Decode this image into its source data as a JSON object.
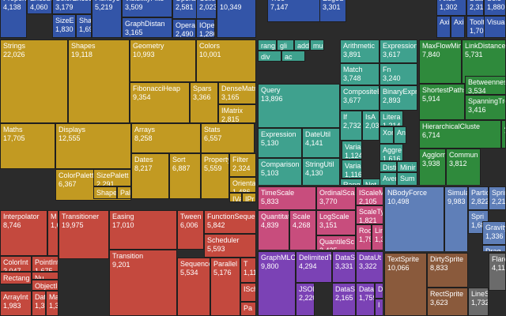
{
  "chart_data": {
    "type": "treemap",
    "colors": {
      "blue": "#3355a8",
      "gold": "#c29a22",
      "red": "#c4493e",
      "teal": "#3fa18e",
      "green": "#2f8a3c",
      "pink": "#c84d7d",
      "violet": "#7b42b5",
      "steel": "#5f7fb8",
      "brown": "#8a5a3c",
      "gray": "#6b6b6b"
    },
    "cells": [
      {
        "label": "Propert",
        "value": "4,138",
        "group": "blue"
      },
      {
        "label": "Encode",
        "value": "4,060",
        "group": "blue"
      },
      {
        "label": "ColorEncod",
        "value": "3,179",
        "group": "blue"
      },
      {
        "label": "SizeE",
        "value": "1,830",
        "group": "blue"
      },
      {
        "label": "Shap",
        "value": "1,690",
        "group": "blue"
      },
      {
        "label": "FisheyeTr",
        "value": "5,219",
        "group": "blue"
      },
      {
        "label": "VisibilityFilte",
        "value": "3,509",
        "group": "blue"
      },
      {
        "label": "GraphDistan",
        "value": "3,165",
        "group": "blue"
      },
      {
        "label": "Operator",
        "value": "2,581",
        "group": "blue"
      },
      {
        "label": "Operator",
        "value": "2,490",
        "group": "blue"
      },
      {
        "label": "IOper",
        "value": "1,286",
        "group": "blue"
      },
      {
        "label": "Collo",
        "value": "2,023",
        "group": "blue"
      },
      {
        "label": "",
        "value": "10,349",
        "group": "blue"
      },
      {
        "label": "Tree",
        "value": "7,147",
        "group": "blue"
      },
      {
        "label": "EdgeS",
        "value": "3,301",
        "group": "blue"
      },
      {
        "label": "Axes",
        "value": "1,302",
        "group": "blue"
      },
      {
        "label": "Axi",
        "value": "",
        "group": "blue"
      },
      {
        "label": "Axi",
        "value": "",
        "group": "blue"
      },
      {
        "label": "DataE",
        "value": "2,313",
        "group": "blue"
      },
      {
        "label": "Sele",
        "value": "1,880",
        "group": "blue"
      },
      {
        "label": "Tooltip",
        "value": "1,701",
        "group": "blue"
      },
      {
        "label": "Visualiz",
        "value": "",
        "group": "blue"
      },
      {
        "label": "Strings",
        "value": "22,026",
        "group": "gold"
      },
      {
        "label": "Shapes",
        "value": "19,118",
        "group": "gold"
      },
      {
        "label": "Geometry",
        "value": "10,993",
        "group": "gold"
      },
      {
        "label": "Colors",
        "value": "10,001",
        "group": "gold"
      },
      {
        "label": "FibonacciHeap",
        "value": "9,354",
        "group": "gold"
      },
      {
        "label": "Spars",
        "value": "3,366",
        "group": "gold"
      },
      {
        "label": "DenseMatrix",
        "value": "3,165",
        "group": "gold"
      },
      {
        "label": "IMatrix",
        "value": "2,815",
        "group": "gold"
      },
      {
        "label": "Maths",
        "value": "17,705",
        "group": "gold"
      },
      {
        "label": "Displays",
        "value": "12,555",
        "group": "gold"
      },
      {
        "label": "Arrays",
        "value": "8,258",
        "group": "gold"
      },
      {
        "label": "Stats",
        "value": "6,557",
        "group": "gold"
      },
      {
        "label": "Dates",
        "value": "8,217",
        "group": "gold"
      },
      {
        "label": "Sort",
        "value": "6,887",
        "group": "gold"
      },
      {
        "label": "Property",
        "value": "5,559",
        "group": "gold"
      },
      {
        "label": "Filter",
        "value": "2,324",
        "group": "gold"
      },
      {
        "label": "ColorPalette",
        "value": "6,367",
        "group": "gold"
      },
      {
        "label": "SizePalett",
        "value": "2,291",
        "group": "gold"
      },
      {
        "label": "Shape",
        "value": "2,059",
        "group": "gold"
      },
      {
        "label": "Pal",
        "value": "1,229",
        "group": "gold"
      },
      {
        "label": "Orienta",
        "value": "1,486",
        "group": "gold"
      },
      {
        "label": "IVal",
        "value": "",
        "group": "gold"
      },
      {
        "label": "IPr",
        "value": "",
        "group": "gold"
      },
      {
        "label": "Interpolator",
        "value": "8,746",
        "group": "red"
      },
      {
        "label": "M",
        "value": "1,675",
        "group": "red"
      },
      {
        "label": "Transitioner",
        "value": "19,975",
        "group": "red"
      },
      {
        "label": "Easing",
        "value": "17,010",
        "group": "red"
      },
      {
        "label": "Tween",
        "value": "6,006",
        "group": "red"
      },
      {
        "label": "FunctionSeque",
        "value": "5,842",
        "group": "red"
      },
      {
        "label": "Scheduler",
        "value": "5,593",
        "group": "red"
      },
      {
        "label": "ColorInt",
        "value": "2,047",
        "group": "red"
      },
      {
        "label": "PointInt",
        "value": "1,675",
        "group": "red"
      },
      {
        "label": "Rectang",
        "value": "2,042",
        "group": "red"
      },
      {
        "label": "Nu",
        "value": "1,382",
        "group": "red"
      },
      {
        "label": "ObjectIn",
        "value": "1,629",
        "group": "red"
      },
      {
        "label": "ArrayInt",
        "value": "1,983",
        "group": "red"
      },
      {
        "label": "Dat",
        "value": "1,375",
        "group": "red"
      },
      {
        "label": "Mat",
        "value": "1,375",
        "group": "red"
      },
      {
        "label": "Transition",
        "value": "9,201",
        "group": "red"
      },
      {
        "label": "Sequence",
        "value": "5,534",
        "group": "red"
      },
      {
        "label": "Parallel",
        "value": "5,176",
        "group": "red"
      },
      {
        "label": "T",
        "value": "1,11",
        "group": "red"
      },
      {
        "label": "ISch",
        "value": "",
        "group": "red"
      },
      {
        "label": "Pa",
        "value": "",
        "group": "red"
      },
      {
        "label": "rang",
        "value": "",
        "group": "teal"
      },
      {
        "label": "gli",
        "value": "",
        "group": "teal"
      },
      {
        "label": "add",
        "value": "",
        "group": "teal"
      },
      {
        "label": "mu",
        "value": "",
        "group": "teal"
      },
      {
        "label": "div",
        "value": "",
        "group": "teal"
      },
      {
        "label": "ac",
        "value": "",
        "group": "teal"
      },
      {
        "label": "Arithmetic",
        "value": "3,891",
        "group": "teal"
      },
      {
        "label": "Expression",
        "value": "3,617",
        "group": "teal"
      },
      {
        "label": "Match",
        "value": "3,748",
        "group": "teal"
      },
      {
        "label": "Fn",
        "value": "3,240",
        "group": "teal"
      },
      {
        "label": "Query",
        "value": "13,896",
        "group": "teal"
      },
      {
        "label": "CompositeE",
        "value": "3,677",
        "group": "teal"
      },
      {
        "label": "BinaryExpr",
        "value": "2,893",
        "group": "teal"
      },
      {
        "label": "If",
        "value": "2,732",
        "group": "teal"
      },
      {
        "label": "IsA",
        "value": "2,039",
        "group": "teal"
      },
      {
        "label": "Litera",
        "value": "1,214",
        "group": "teal"
      },
      {
        "label": "Varia",
        "value": "1,124",
        "group": "teal"
      },
      {
        "label": "Xor",
        "value": "",
        "group": "teal"
      },
      {
        "label": "And",
        "value": "",
        "group": "teal"
      },
      {
        "label": "Expression",
        "value": "5,130",
        "group": "teal"
      },
      {
        "label": "DateUtil",
        "value": "4,141",
        "group": "teal"
      },
      {
        "label": "Variar",
        "value": "1,116",
        "group": "teal"
      },
      {
        "label": "Aggre",
        "value": "1,616",
        "group": "teal"
      },
      {
        "label": "Distin",
        "value": "",
        "group": "teal"
      },
      {
        "label": "Minir",
        "value": "",
        "group": "teal"
      },
      {
        "label": "Comparison",
        "value": "5,103",
        "group": "teal"
      },
      {
        "label": "StringUtil",
        "value": "4,130",
        "group": "teal"
      },
      {
        "label": "Rang",
        "value": "1,594",
        "group": "teal"
      },
      {
        "label": "Not",
        "value": "1,554",
        "group": "teal"
      },
      {
        "label": "Avera",
        "value": "",
        "group": "teal"
      },
      {
        "label": "Sum",
        "value": "",
        "group": "teal"
      },
      {
        "label": "MaxFlowMinC",
        "value": "7,840",
        "group": "green"
      },
      {
        "label": "LinkDistance",
        "value": "5,731",
        "group": "green"
      },
      {
        "label": "ShortestPaths",
        "value": "5,914",
        "group": "green"
      },
      {
        "label": "Betweennes",
        "value": "3,534",
        "group": "green"
      },
      {
        "label": "SpanningTre",
        "value": "3,416",
        "group": "green"
      },
      {
        "label": "HierarchicalCluste",
        "value": "6,714",
        "group": "green"
      },
      {
        "label": "AspectR",
        "value": "7,074",
        "group": "green"
      },
      {
        "label": "Agglom",
        "value": "3,938",
        "group": "green"
      },
      {
        "label": "Commun",
        "value": "3,812",
        "group": "green"
      },
      {
        "label": "TimeScale",
        "value": "5,833",
        "group": "pink"
      },
      {
        "label": "OrdinalScale",
        "value": "3,770",
        "group": "pink"
      },
      {
        "label": "IScaleMa",
        "value": "2,105",
        "group": "pink"
      },
      {
        "label": "Quantitati",
        "value": "4,839",
        "group": "pink"
      },
      {
        "label": "Scale",
        "value": "4,268",
        "group": "pink"
      },
      {
        "label": "LogScale",
        "value": "3,151",
        "group": "pink"
      },
      {
        "label": "ScaleTyp",
        "value": "1,821",
        "group": "pink"
      },
      {
        "label": "Root",
        "value": "1,756",
        "group": "pink"
      },
      {
        "label": "Lin",
        "value": "1,3",
        "group": "pink"
      },
      {
        "label": "QuantileSc",
        "value": "2,435",
        "group": "pink"
      },
      {
        "label": "GraphMLCo",
        "value": "9,800",
        "group": "violet"
      },
      {
        "label": "DelimitedT",
        "value": "4,294",
        "group": "violet"
      },
      {
        "label": "JSON",
        "value": "2,220",
        "group": "violet"
      },
      {
        "label": "DataSo",
        "value": "3,331",
        "group": "violet"
      },
      {
        "label": "DataUt",
        "value": "3,322",
        "group": "violet"
      },
      {
        "label": "DataSe",
        "value": "2,165",
        "group": "violet"
      },
      {
        "label": "DataT",
        "value": "1,759",
        "group": "violet"
      },
      {
        "label": "D",
        "value": "",
        "group": "violet"
      },
      {
        "label": "I",
        "value": "",
        "group": "violet"
      },
      {
        "label": "NBodyForce",
        "value": "10,498",
        "group": "steel"
      },
      {
        "label": "Simulation",
        "value": "9,983",
        "group": "steel"
      },
      {
        "label": "Partic",
        "value": "2,822",
        "group": "steel"
      },
      {
        "label": "Sprin",
        "value": "2,213",
        "group": "steel"
      },
      {
        "label": "Spri",
        "value": "1,681",
        "group": "steel"
      },
      {
        "label": "Gravity",
        "value": "1,336",
        "group": "steel"
      },
      {
        "label": "Drag",
        "value": "",
        "group": "steel"
      },
      {
        "label": "TextSprite",
        "value": "10,066",
        "group": "brown"
      },
      {
        "label": "DirtySprite",
        "value": "8,833",
        "group": "brown"
      },
      {
        "label": "RectSprite",
        "value": "3,623",
        "group": "brown"
      },
      {
        "label": "Flare",
        "value": "4,11",
        "group": "gray"
      },
      {
        "label": "LineS",
        "value": "1,732",
        "group": "gray"
      }
    ]
  }
}
